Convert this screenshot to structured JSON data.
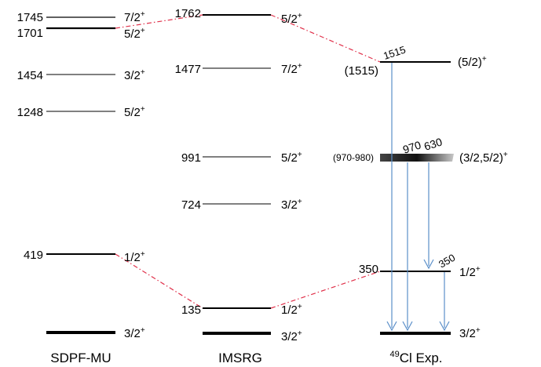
{
  "columns": [
    {
      "label": "SDPF-MU"
    },
    {
      "label": "IMSRG"
    },
    {
      "label_sup": "49",
      "label": "Cl Exp."
    }
  ],
  "levels": {
    "sdpf": [
      {
        "energy": "1745",
        "spin": "7/2",
        "parity": "+"
      },
      {
        "energy": "1701",
        "spin": "5/2",
        "parity": "+"
      },
      {
        "energy": "1454",
        "spin": "3/2",
        "parity": "+"
      },
      {
        "energy": "1248",
        "spin": "5/2",
        "parity": "+"
      },
      {
        "energy": "419",
        "spin": "1/2",
        "parity": "+"
      },
      {
        "energy": "",
        "spin": "3/2",
        "parity": "+"
      }
    ],
    "imsrg": [
      {
        "energy": "1762",
        "spin": "5/2",
        "parity": "+"
      },
      {
        "energy": "1477",
        "spin": "7/2",
        "parity": "+"
      },
      {
        "energy": "991",
        "spin": "5/2",
        "parity": "+"
      },
      {
        "energy": "724",
        "spin": "3/2",
        "parity": "+"
      },
      {
        "energy": "135",
        "spin": "1/2",
        "parity": "+"
      },
      {
        "energy": "",
        "spin": "3/2",
        "parity": "+"
      }
    ],
    "exp": [
      {
        "energy": "(1515)",
        "energy_top": "1515",
        "spin": "(5/2)",
        "parity": "+"
      },
      {
        "energy": "(970-980)",
        "spin": "(3/2,5/2)",
        "parity": "+"
      },
      {
        "energy": "350",
        "spin": "1/2",
        "parity": "+"
      },
      {
        "energy": "",
        "spin": "3/2",
        "parity": "+"
      }
    ]
  },
  "gammas": [
    {
      "label": "1515"
    },
    {
      "label": "970"
    },
    {
      "label": "630"
    },
    {
      "label": "350"
    }
  ],
  "colors": {
    "level_line": "#000000",
    "gamma_arrow": "#5b8fc9",
    "correlation": "#e0304a"
  }
}
